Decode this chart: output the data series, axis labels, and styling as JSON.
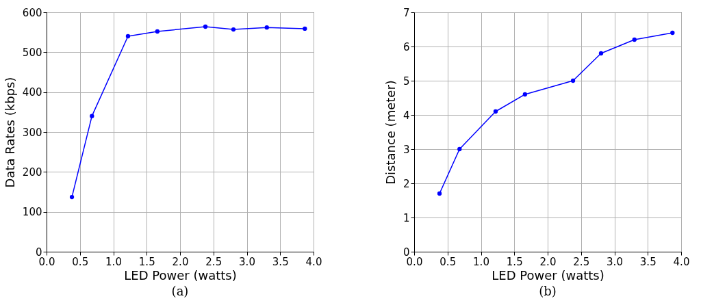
{
  "chart_data": [
    {
      "type": "line",
      "xlabel": "LED Power (watts)",
      "ylabel": "Data Rates (kbps)",
      "annotations": [
        "(a)"
      ],
      "x": [
        0.38,
        0.68,
        1.22,
        1.66,
        2.38,
        2.8,
        3.3,
        3.87
      ],
      "series": [
        {
          "color": "#0000ff",
          "values": [
            137,
            340,
            540,
            552,
            564,
            557,
            562,
            559
          ]
        }
      ],
      "xlim": [
        0,
        4
      ],
      "xticks": [
        {
          "value": 0,
          "label": "0.0"
        },
        0.5,
        {
          "value": 1,
          "label": "1.0"
        },
        1.5,
        {
          "value": 2,
          "label": "2.0"
        },
        2.5,
        {
          "value": 3,
          "label": "3.0"
        },
        3.5,
        {
          "value": 4,
          "label": "4.0"
        }
      ],
      "ylim": [
        0,
        600
      ],
      "yticks": [
        0,
        100,
        200,
        300,
        400,
        500,
        600
      ],
      "grid": true,
      "marker": "circle",
      "line_style": "solid"
    },
    {
      "type": "line",
      "xlabel": "LED Power (watts)",
      "ylabel": "Distance (meter)",
      "annotations": [
        "(b)"
      ],
      "x": [
        0.38,
        0.68,
        1.22,
        1.66,
        2.38,
        2.8,
        3.3,
        3.87
      ],
      "series": [
        {
          "color": "#0000ff",
          "values": [
            1.7,
            3.0,
            4.1,
            4.6,
            5.0,
            5.8,
            6.2,
            6.4
          ]
        }
      ],
      "xlim": [
        0,
        4
      ],
      "xticks": [
        {
          "value": 0,
          "label": "0.0"
        },
        0.5,
        {
          "value": 1,
          "label": "1.0"
        },
        1.5,
        {
          "value": 2,
          "label": "2.0"
        },
        2.5,
        {
          "value": 3,
          "label": "3.0"
        },
        3.5,
        {
          "value": 4,
          "label": "4.0"
        }
      ],
      "ylim": [
        0,
        7
      ],
      "yticks": [
        0,
        1,
        2,
        3,
        4,
        5,
        6,
        7
      ],
      "grid": true,
      "marker": "circle",
      "line_style": "solid"
    }
  ]
}
